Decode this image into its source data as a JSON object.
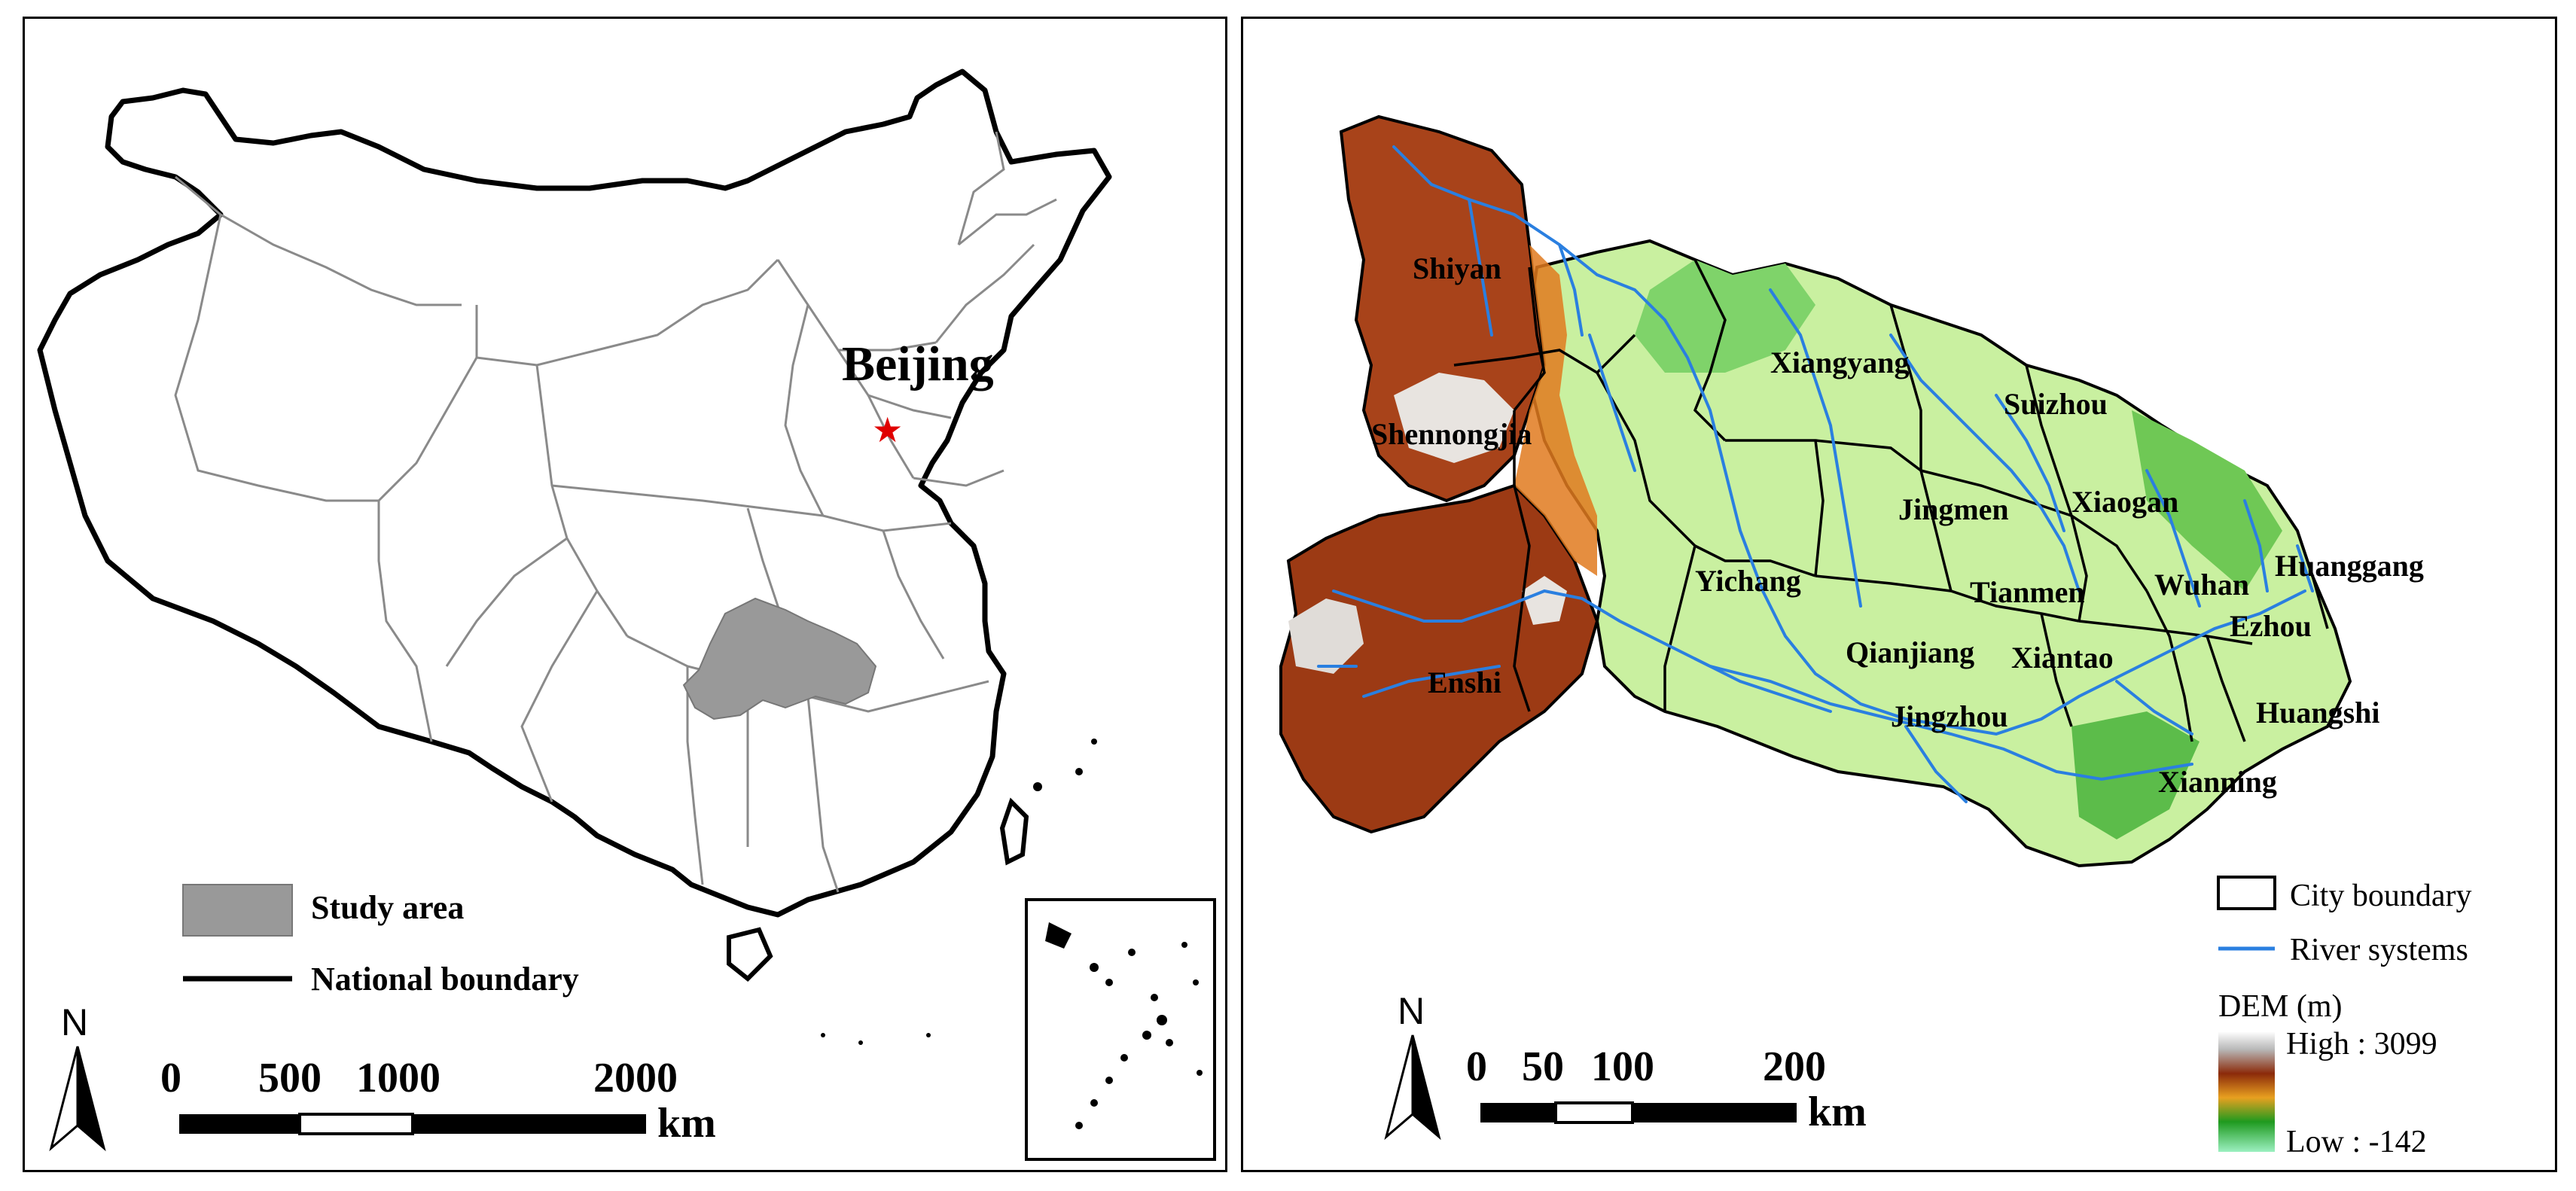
{
  "china_map": {
    "capital_label": "Beijing",
    "legend": {
      "study_area": "Study area",
      "national_boundary": "National boundary",
      "study_area_color": "#999999"
    },
    "north_label": "N",
    "scale": {
      "ticks": [
        "0",
        "500",
        "1000",
        "2000"
      ],
      "unit": "km"
    }
  },
  "hubei_map": {
    "cities": [
      "Shiyan",
      "Xiangyang",
      "Suizhou",
      "Shennongjia",
      "Jingmen",
      "Xiaogan",
      "Yichang",
      "Tianmen",
      "Wuhan",
      "Huanggang",
      "Qianjiang",
      "Xiantao",
      "Ezhou",
      "Enshi",
      "Jingzhou",
      "Huangshi",
      "Xianning"
    ],
    "legend": {
      "city_boundary": "City boundary",
      "river_systems": "River systems",
      "dem_title": "DEM (m)",
      "dem_high": "High : 3099",
      "dem_low": "Low : -142",
      "river_color": "#2a7fe0"
    },
    "north_label": "N",
    "scale": {
      "ticks": [
        "0",
        "50",
        "100",
        "200"
      ],
      "unit": "km"
    }
  }
}
